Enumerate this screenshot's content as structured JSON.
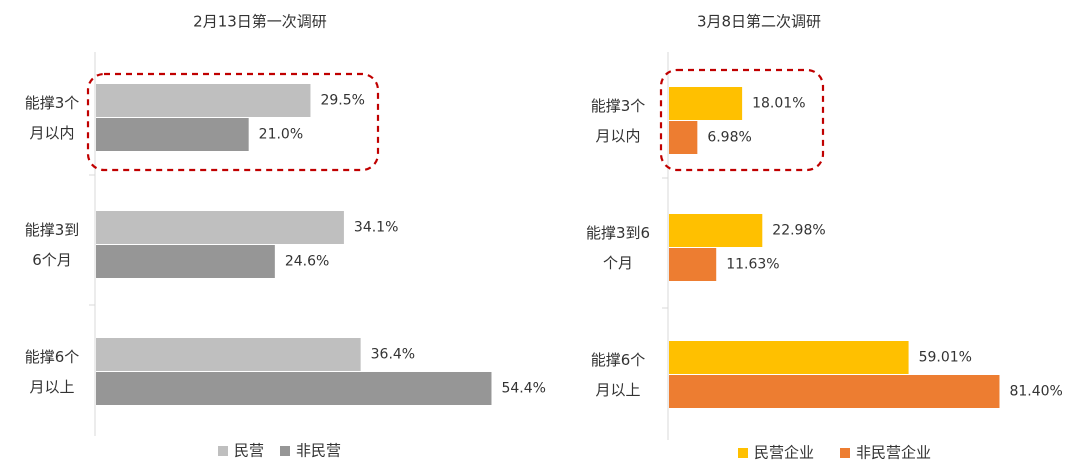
{
  "chart_data": [
    {
      "type": "bar",
      "orientation": "horizontal",
      "title": "2月13日第一次调研",
      "categories": [
        [
          "能撑3个",
          "月以内"
        ],
        [
          "能撑3到",
          "6个月"
        ],
        [
          "能撑6个",
          "月以上"
        ]
      ],
      "series": [
        {
          "name": "民营",
          "color": "#bfbfbf",
          "values": [
            29.5,
            34.1,
            36.4
          ],
          "labels": [
            "29.5%",
            "34.1%",
            "36.4%"
          ]
        },
        {
          "name": "非民营",
          "color": "#969696",
          "values": [
            21.0,
            24.6,
            54.4
          ],
          "labels": [
            "21.0%",
            "24.6%",
            "54.4%"
          ]
        }
      ],
      "xlim": [
        0,
        100
      ],
      "highlight": {
        "category_index": 0,
        "style": "dashed-rounded-box",
        "color": "#c00000"
      },
      "legend": "bottom",
      "grid": false
    },
    {
      "type": "bar",
      "orientation": "horizontal",
      "title": "3月8日第二次调研",
      "categories": [
        [
          "能撑3个",
          "月以内"
        ],
        [
          "能撑3到6",
          "个月"
        ],
        [
          "能撑6个",
          "月以上"
        ]
      ],
      "series": [
        {
          "name": "民营企业",
          "color": "#ffc000",
          "values": [
            18.01,
            22.98,
            59.01
          ],
          "labels": [
            "18.01%",
            "22.98%",
            "59.01%"
          ]
        },
        {
          "name": "非民营企业",
          "color": "#ed7d31",
          "values": [
            6.98,
            11.63,
            81.4
          ],
          "labels": [
            "6.98%",
            "11.63%",
            "81.40%"
          ]
        }
      ],
      "xlim": [
        0,
        100
      ],
      "highlight": {
        "category_index": 0,
        "style": "dashed-rounded-box",
        "color": "#c00000"
      },
      "legend": "bottom",
      "grid": false
    }
  ]
}
